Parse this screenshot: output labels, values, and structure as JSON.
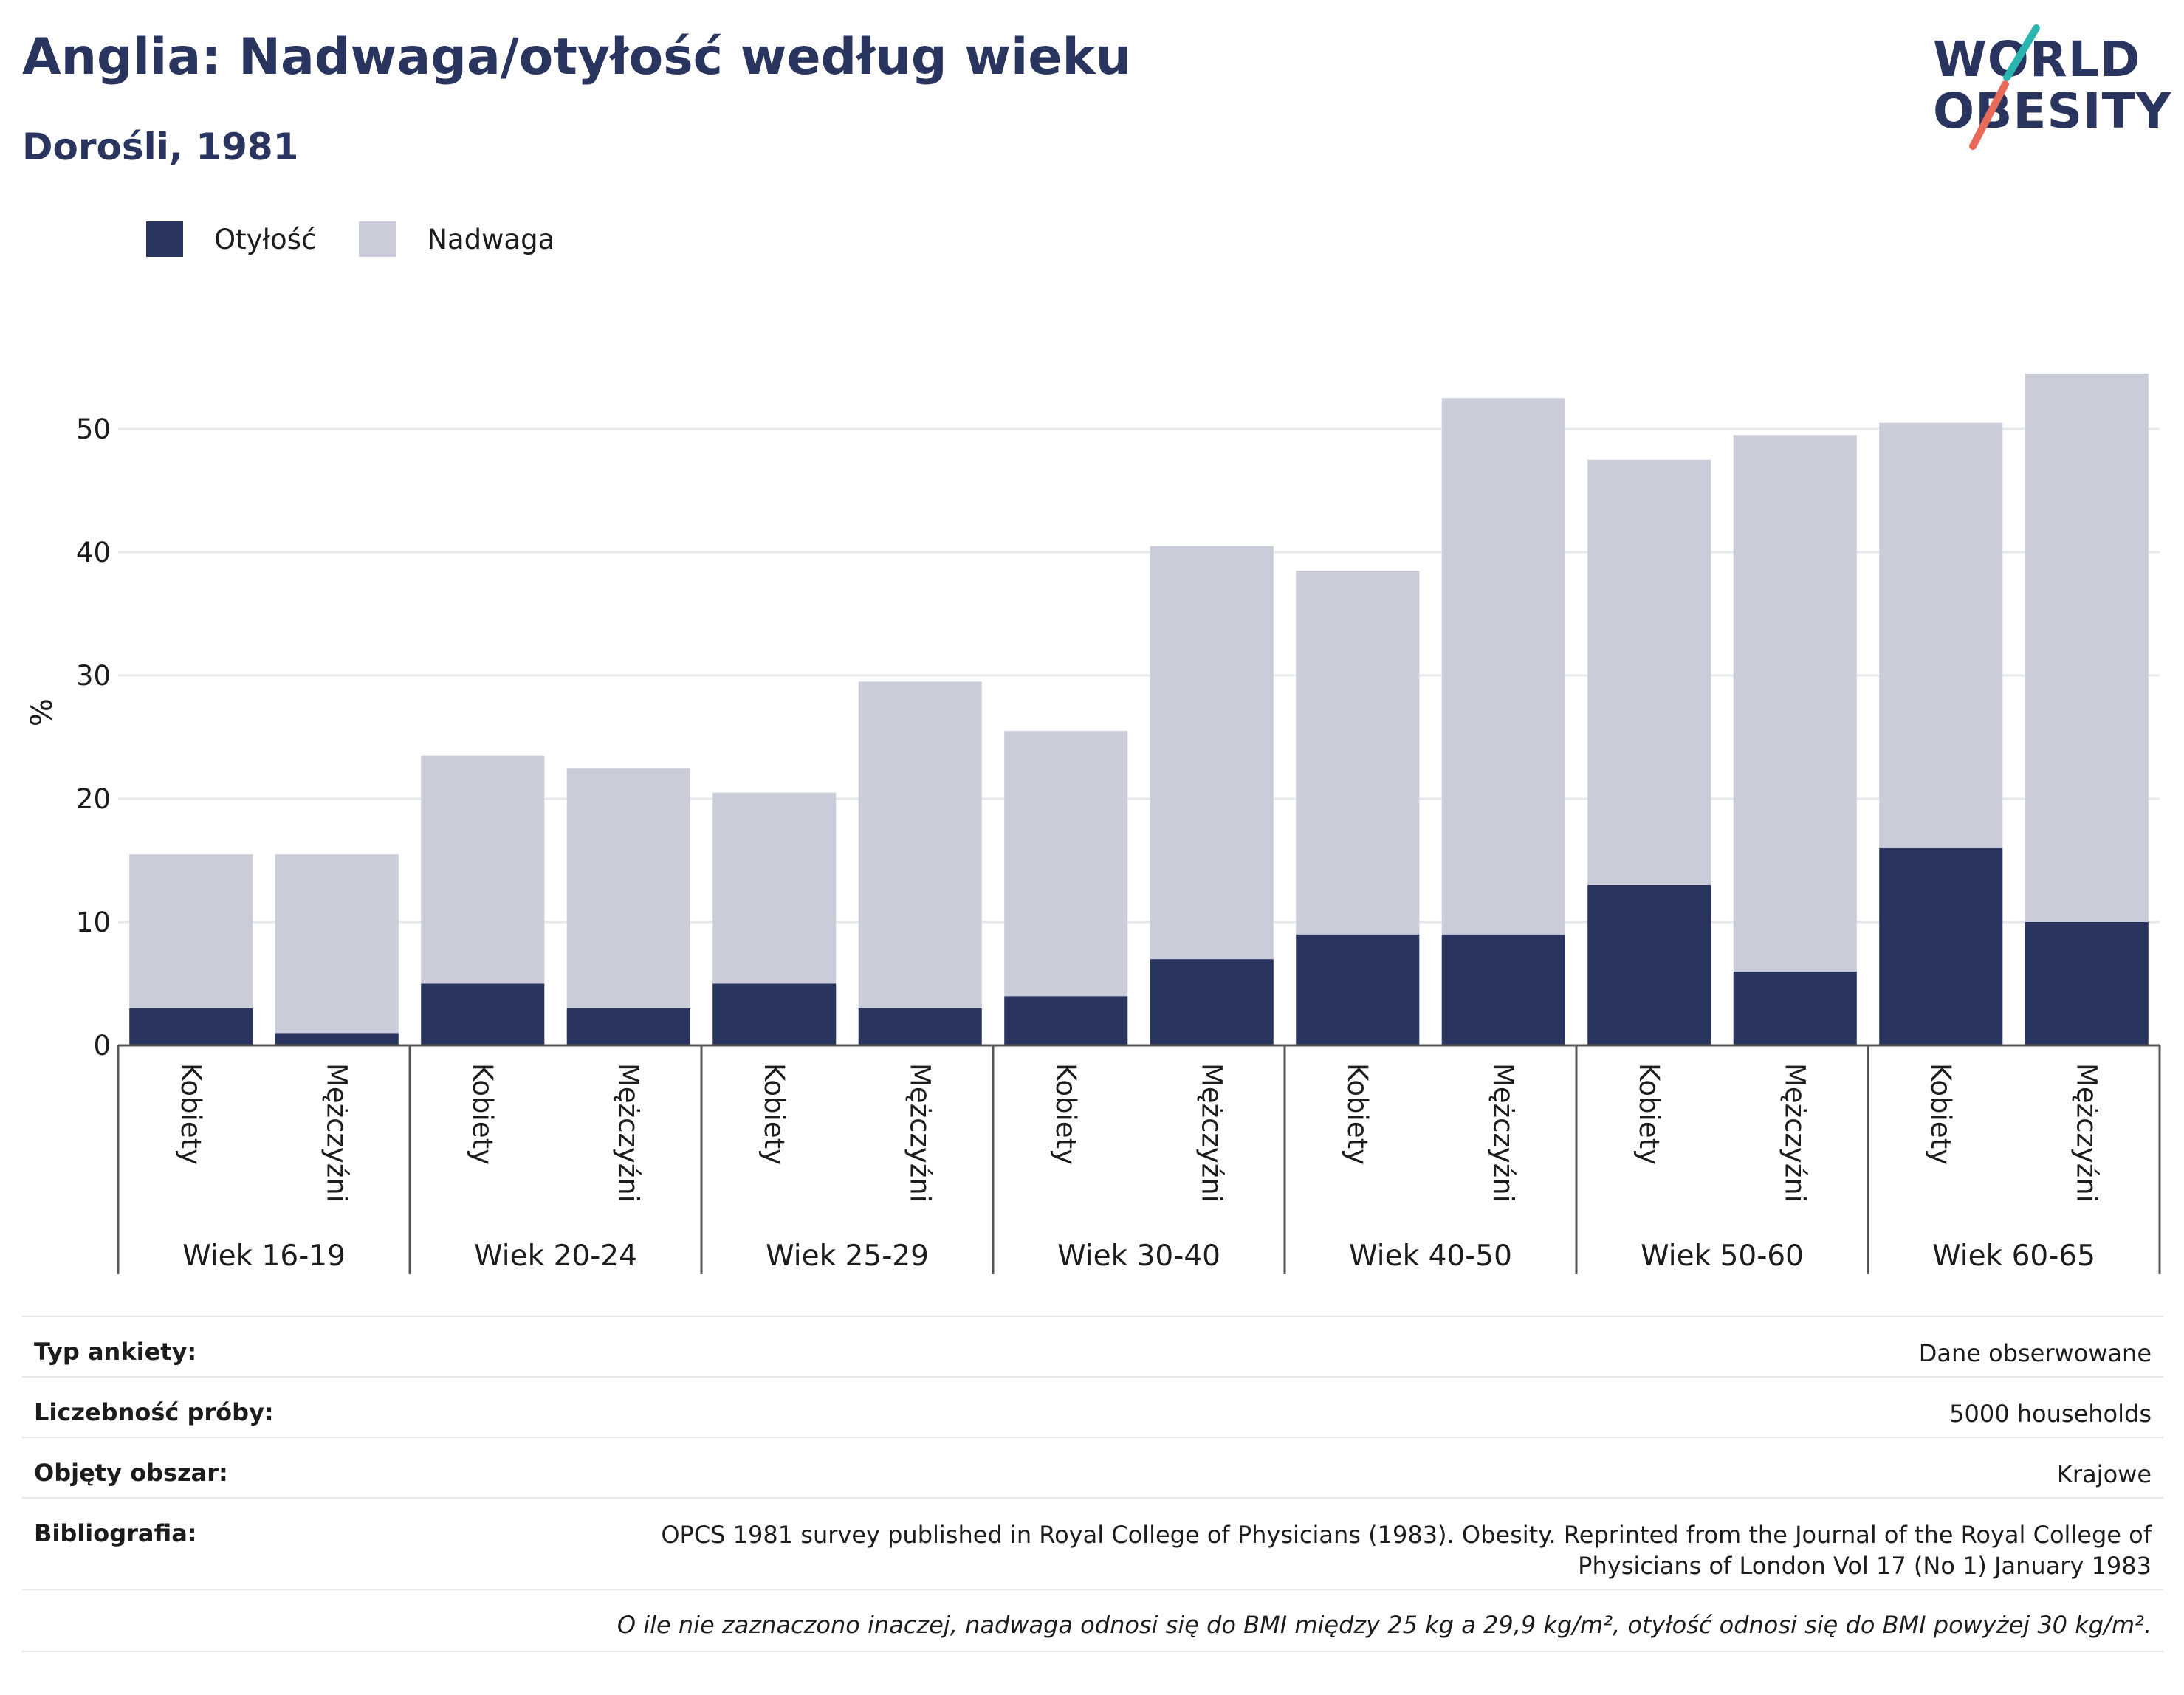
{
  "header": {
    "title": "Anglia: Nadwaga/otyłość według wieku",
    "subtitle": "Dorośli, 1981"
  },
  "logo": {
    "line1": "WORLD",
    "line2": "OBESITY",
    "colors": {
      "text": "#2a355f",
      "teal": "#2bb5b0",
      "coral": "#e86a5a"
    }
  },
  "legend": {
    "items": [
      {
        "label": "Otyłość",
        "color": "#2a355f"
      },
      {
        "label": "Nadwaga",
        "color": "#cacdd9"
      }
    ]
  },
  "chart_data": {
    "type": "bar",
    "stacked": true,
    "ylabel": "%",
    "ylim": [
      0,
      55
    ],
    "yticks": [
      0,
      10,
      20,
      30,
      40,
      50
    ],
    "grid": true,
    "legend_position": "top-left",
    "groups": [
      "Wiek 16-19",
      "Wiek 20-24",
      "Wiek 25-29",
      "Wiek 30-40",
      "Wiek 40-50",
      "Wiek 50-60",
      "Wiek 60-65"
    ],
    "subcategories": [
      "Kobiety",
      "Mężczyźni"
    ],
    "categories": [
      "Kobiety",
      "Mężczyźni",
      "Kobiety",
      "Mężczyźni",
      "Kobiety",
      "Mężczyźni",
      "Kobiety",
      "Mężczyźni",
      "Kobiety",
      "Mężczyźni",
      "Kobiety",
      "Mężczyźni",
      "Kobiety",
      "Mężczyźni"
    ],
    "series": [
      {
        "name": "Otyłość",
        "color": "#2a355f",
        "values": [
          3,
          1,
          5,
          3,
          5,
          3,
          4,
          7,
          9,
          9,
          13,
          6,
          16,
          10
        ]
      },
      {
        "name": "Nadwaga",
        "color": "#cacdd9",
        "values": [
          12.5,
          14.5,
          18.5,
          19.5,
          15.5,
          26.5,
          21.5,
          33.5,
          29.5,
          43.5,
          34.5,
          43.5,
          34.5,
          44.5
        ]
      }
    ]
  },
  "info": {
    "survey_type_label": "Typ ankiety:",
    "survey_type_value": "Dane obserwowane",
    "sample_size_label": "Liczebność próby:",
    "sample_size_value": "5000 households",
    "area_label": "Objęty obszar:",
    "area_value": "Krajowe",
    "bibliography_label": "Bibliografia:",
    "bibliography_line1": "OPCS 1981 survey published in Royal College of Physicians (1983). Obesity. Reprinted from the Journal of the Royal College of",
    "bibliography_line2": "Physicians of London Vol 17 (No 1) January 1983",
    "note": "O ile nie zaznaczono inaczej, nadwaga odnosi się do BMI między 25 kg a 29,9 kg/m², otyłość odnosi się do BMI powyżej 30 kg/m²."
  }
}
